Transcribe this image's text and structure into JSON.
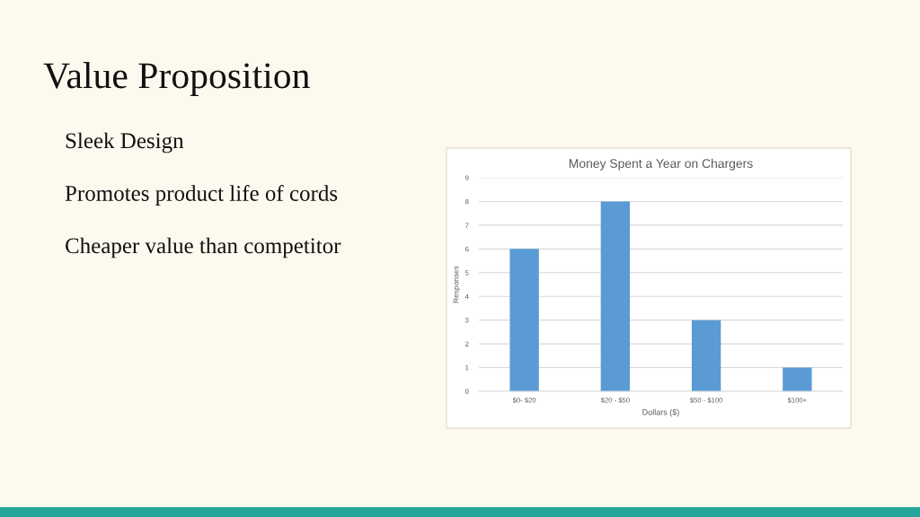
{
  "chart_data": {
    "type": "bar",
    "title": "Value Proposition",
    "subtitle": "Money Spent a Year on Chargers",
    "xlabel": "Dollars ($)",
    "ylabel": "Responses",
    "categories": [
      "$0- $20",
      "$20 - $50",
      "$50 - $100",
      "$100+"
    ],
    "values": [
      6,
      8,
      3,
      1
    ],
    "color": "#5b9bd5",
    "ylim": [
      0,
      9
    ],
    "yticks": [
      0,
      1,
      2,
      3,
      4,
      5,
      6,
      7,
      8,
      9
    ],
    "grid": "y",
    "annotations": [
      "Sleek Design",
      "Promotes product life of cords",
      "Cheaper value than competitor"
    ]
  }
}
